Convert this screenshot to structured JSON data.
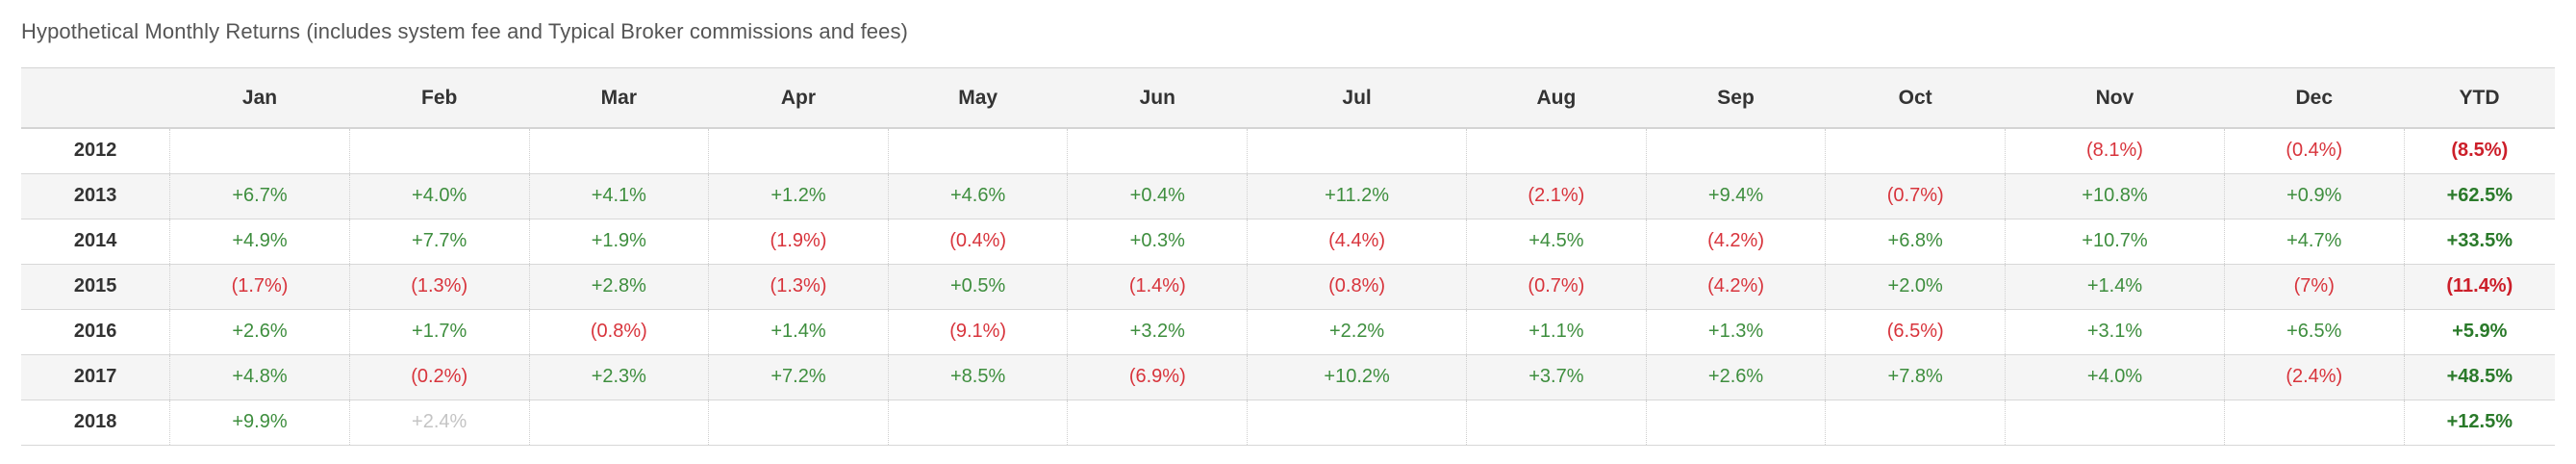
{
  "caption": "Hypothetical Monthly Returns (includes system fee and Typical Broker commissions and fees)",
  "columns": [
    "",
    "Jan",
    "Feb",
    "Mar",
    "Apr",
    "May",
    "Jun",
    "Jul",
    "Aug",
    "Sep",
    "Oct",
    "Nov",
    "Dec",
    "YTD"
  ],
  "colors": {
    "positive": "#3e8e3e",
    "negative": "#d8343c",
    "pending": "#c4c4c4",
    "header_background": "#f4f4f4",
    "stripe_background": "#f5f5f5"
  },
  "rows": [
    {
      "year": "2012",
      "months": [
        "",
        "",
        "",
        "",
        "",
        "",
        "",
        "",
        "",
        "",
        "(8.1%)",
        "(0.4%)"
      ],
      "ytd": "(8.5%)"
    },
    {
      "year": "2013",
      "months": [
        "+6.7%",
        "+4.0%",
        "+4.1%",
        "+1.2%",
        "+4.6%",
        "+0.4%",
        "+11.2%",
        "(2.1%)",
        "+9.4%",
        "(0.7%)",
        "+10.8%",
        "+0.9%"
      ],
      "ytd": "+62.5%"
    },
    {
      "year": "2014",
      "months": [
        "+4.9%",
        "+7.7%",
        "+1.9%",
        "(1.9%)",
        "(0.4%)",
        "+0.3%",
        "(4.4%)",
        "+4.5%",
        "(4.2%)",
        "+6.8%",
        "+10.7%",
        "+4.7%"
      ],
      "ytd": "+33.5%"
    },
    {
      "year": "2015",
      "months": [
        "(1.7%)",
        "(1.3%)",
        "+2.8%",
        "(1.3%)",
        "+0.5%",
        "(1.4%)",
        "(0.8%)",
        "(0.7%)",
        "(4.2%)",
        "+2.0%",
        "+1.4%",
        "(7%)"
      ],
      "ytd": "(11.4%)"
    },
    {
      "year": "2016",
      "months": [
        "+2.6%",
        "+1.7%",
        "(0.8%)",
        "+1.4%",
        "(9.1%)",
        "+3.2%",
        "+2.2%",
        "+1.1%",
        "+1.3%",
        "(6.5%)",
        "+3.1%",
        "+6.5%"
      ],
      "ytd": "+5.9%"
    },
    {
      "year": "2017",
      "months": [
        "+4.8%",
        "(0.2%)",
        "+2.3%",
        "+7.2%",
        "+8.5%",
        "(6.9%)",
        "+10.2%",
        "+3.7%",
        "+2.6%",
        "+7.8%",
        "+4.0%",
        "(2.4%)"
      ],
      "ytd": "+48.5%"
    },
    {
      "year": "2018",
      "months": [
        "+9.9%",
        "+2.4%",
        "",
        "",
        "",
        "",
        "",
        "",
        "",
        "",
        "",
        ""
      ],
      "pending_months": [
        1
      ],
      "ytd": "+12.5%"
    }
  ]
}
